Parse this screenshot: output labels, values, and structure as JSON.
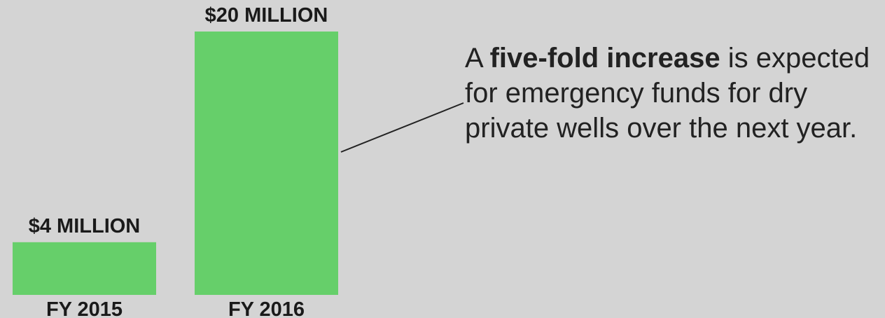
{
  "chart_data": {
    "type": "bar",
    "categories": [
      "FY 2015",
      "FY 2016"
    ],
    "values": [
      4,
      20
    ],
    "data_labels": [
      "$4 MILLION",
      "$20 MILLION"
    ],
    "unit": "million dollars",
    "title": "",
    "xlabel": "",
    "ylabel": "",
    "ylim": [
      0,
      20
    ],
    "grid": false,
    "legend": "none",
    "bar_color": "#66cf6a"
  },
  "annotation": {
    "prefix": "A ",
    "emphasis": "five-fold increase",
    "suffix": " is expected for emergency funds for dry private wells over the next year."
  },
  "colors": {
    "background": "#d4d4d4",
    "bar": "#66cf6a",
    "text": "#1a1a1a",
    "leader_line": "#222222"
  }
}
